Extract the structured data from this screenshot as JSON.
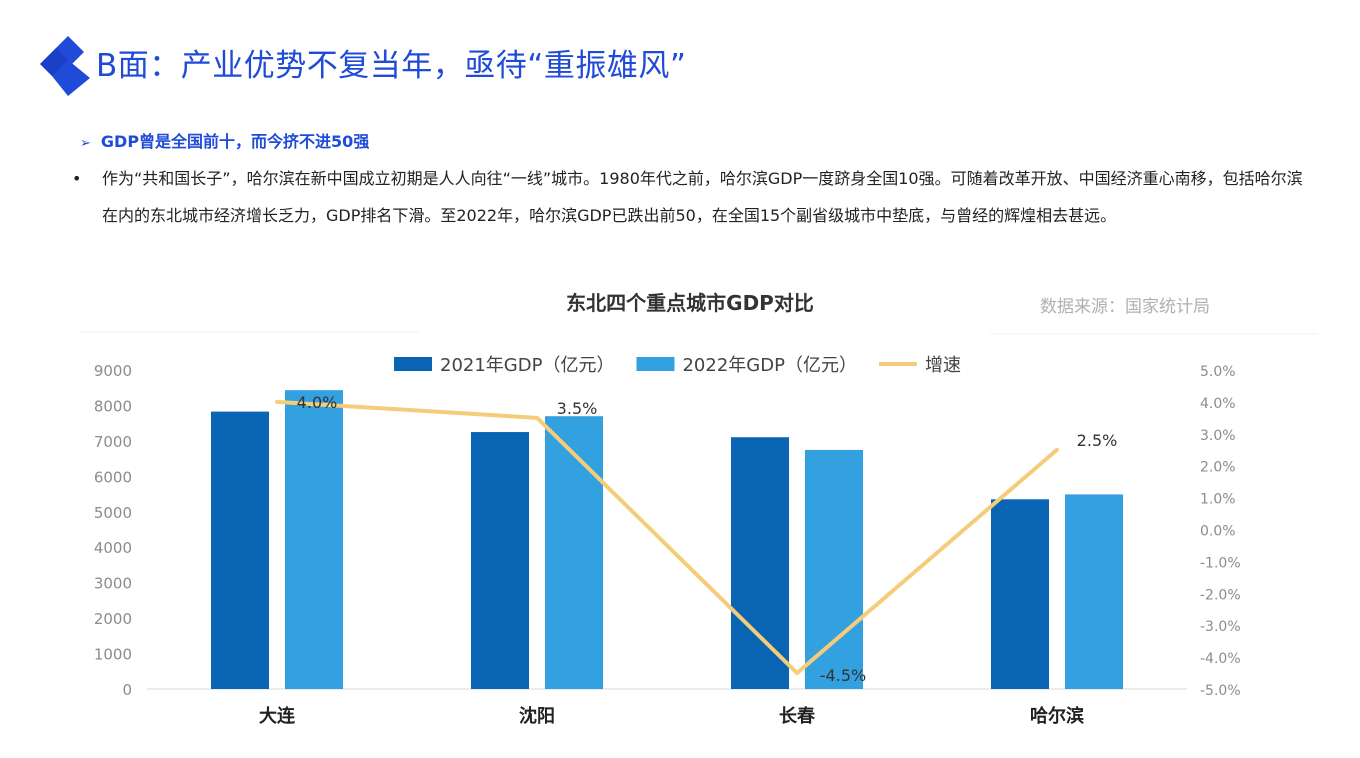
{
  "header": {
    "title": "B面：产业优势不复当年，亟待“重振雄风”",
    "accent_color": "#1f4bd8"
  },
  "section": {
    "heading_marker": "➢",
    "heading": "GDP曾是全国前十，而今挤不进50强",
    "bullet": "•",
    "paragraph": "作为“共和国长子”，哈尔滨在新中国成立初期是人人向往“一线”城市。1980年代之前，哈尔滨GDP一度跻身全国10强。可随着改革开放、中国经济重心南移，包括哈尔滨在内的东北城市经济增长乏力，GDP排名下滑。至2022年，哈尔滨GDP已跌出前50，在全国15个副省级城市中垫底，与曾经的辉煌相去甚远。"
  },
  "chart_data": {
    "type": "bar",
    "title": "东北四个重点城市GDP对比",
    "source": "数据来源：国家统计局",
    "categories": [
      "大连",
      "沈阳",
      "长春",
      "哈尔滨"
    ],
    "series": [
      {
        "name": "2021年GDP（亿元）",
        "type": "bar",
        "axis": "left",
        "color": "#0a64b4",
        "values": [
          7826,
          7249,
          7103,
          5352
        ]
      },
      {
        "name": "2022年GDP（亿元）",
        "type": "bar",
        "axis": "left",
        "color": "#33a0e0",
        "values": [
          8431,
          7696,
          6745,
          5490
        ]
      },
      {
        "name": "增速",
        "type": "line",
        "axis": "right",
        "color": "#f5cd7a",
        "values": [
          4.0,
          3.5,
          -4.5,
          2.5
        ],
        "labels": [
          "4.0%",
          "3.5%",
          "-4.5%",
          "2.5%"
        ]
      }
    ],
    "y_left": {
      "min": 0,
      "max": 9000,
      "ticks": [
        "0",
        "1000",
        "2000",
        "3000",
        "4000",
        "5000",
        "6000",
        "7000",
        "8000",
        "9000"
      ]
    },
    "y_right": {
      "min": -5.0,
      "max": 5.0,
      "ticks": [
        "-5.0%",
        "-4.0%",
        "-3.0%",
        "-2.0%",
        "-1.0%",
        "0.0%",
        "1.0%",
        "2.0%",
        "3.0%",
        "4.0%",
        "5.0%"
      ]
    },
    "legend_position": "top",
    "grid": false
  }
}
